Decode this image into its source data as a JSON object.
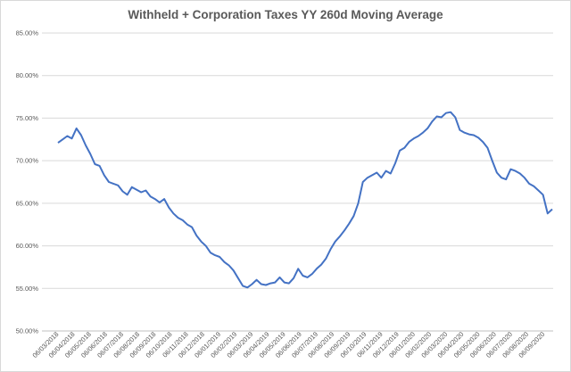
{
  "chart_data": {
    "type": "line",
    "title": "Withheld  + Corporation Taxes YY 260d Moving Average",
    "xlabel": "",
    "ylabel": "",
    "ylim": [
      0.5,
      0.85
    ],
    "y_ticks": [
      0.5,
      0.55,
      0.6,
      0.65,
      0.7,
      0.75,
      0.8,
      0.85
    ],
    "y_tick_labels": [
      "50.00%",
      "55.00%",
      "60.00%",
      "65.00%",
      "70.00%",
      "75.00%",
      "80.00%",
      "85.00%"
    ],
    "x_tick_labels": [
      "06/03/2018",
      "06/04/2018",
      "06/05/2018",
      "06/06/2018",
      "06/07/2018",
      "06/08/2018",
      "06/09/2018",
      "06/10/2018",
      "06/11/2018",
      "06/12/2018",
      "06/01/2019",
      "06/02/2019",
      "06/03/2019",
      "06/04/2019",
      "06/05/2019",
      "06/06/2019",
      "06/07/2019",
      "06/08/2019",
      "06/09/2019",
      "06/10/2019",
      "06/11/2019",
      "06/12/2019",
      "06/01/2020",
      "06/02/2020",
      "06/03/2020",
      "06/04/2020",
      "06/05/2020",
      "06/06/2020",
      "06/07/2020",
      "06/08/2020",
      "06/09/2020"
    ],
    "grid": true,
    "legend": "none",
    "color": "#4472c4",
    "series": [
      {
        "values": [
          0.721,
          0.725,
          0.729,
          0.726,
          0.738,
          0.73,
          0.718,
          0.708,
          0.696,
          0.694,
          0.683,
          0.675,
          0.673,
          0.671,
          0.664,
          0.66,
          0.669,
          0.666,
          0.663,
          0.665,
          0.658,
          0.655,
          0.651,
          0.655,
          0.645,
          0.638,
          0.633,
          0.63,
          0.625,
          0.622,
          0.612,
          0.605,
          0.6,
          0.592,
          0.589,
          0.587,
          0.581,
          0.577,
          0.571,
          0.562,
          0.553,
          0.551,
          0.555,
          0.56,
          0.555,
          0.554,
          0.556,
          0.557,
          0.563,
          0.557,
          0.556,
          0.562,
          0.573,
          0.565,
          0.563,
          0.567,
          0.573,
          0.578,
          0.585,
          0.596,
          0.605,
          0.611,
          0.618,
          0.626,
          0.635,
          0.65,
          0.675,
          0.68,
          0.683,
          0.686,
          0.68,
          0.688,
          0.685,
          0.697,
          0.712,
          0.715,
          0.722,
          0.726,
          0.729,
          0.733,
          0.738,
          0.746,
          0.752,
          0.751,
          0.756,
          0.757,
          0.751,
          0.736,
          0.733,
          0.731,
          0.73,
          0.727,
          0.722,
          0.715,
          0.7,
          0.686,
          0.68,
          0.678,
          0.69,
          0.688,
          0.685,
          0.68,
          0.673,
          0.67,
          0.665,
          0.66,
          0.638,
          0.643
        ]
      }
    ]
  }
}
